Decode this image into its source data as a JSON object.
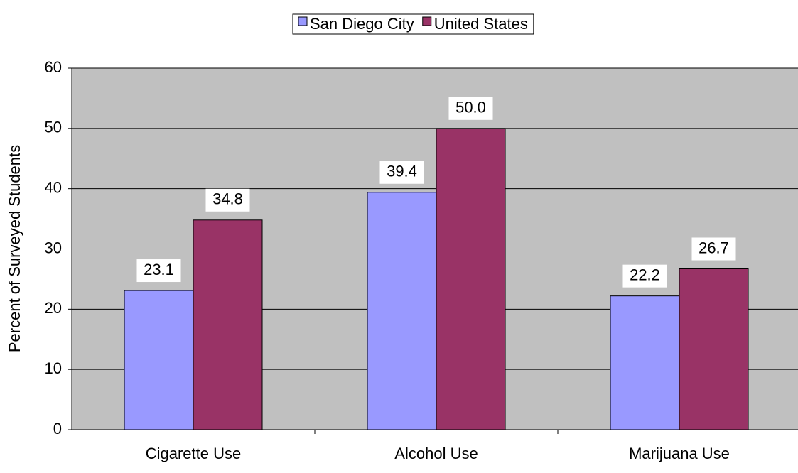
{
  "chart_data": {
    "type": "bar",
    "y_label": "Percent of Surveyed Students",
    "categories": [
      "Cigarette Use",
      "Alcohol Use",
      "Marijuana Use"
    ],
    "series": [
      {
        "name": "San Diego City",
        "color": "#9999ff",
        "values": [
          23.1,
          39.4,
          22.2
        ]
      },
      {
        "name": "United States",
        "color": "#993366",
        "values": [
          34.8,
          50,
          26.7
        ],
        "value_labels": [
          "34.8",
          "50.0",
          "26.7"
        ]
      }
    ],
    "ylim": [
      0,
      60
    ],
    "yticks": [
      0,
      10,
      20,
      30,
      40,
      50,
      60
    ],
    "grid": true,
    "legend": "top"
  }
}
